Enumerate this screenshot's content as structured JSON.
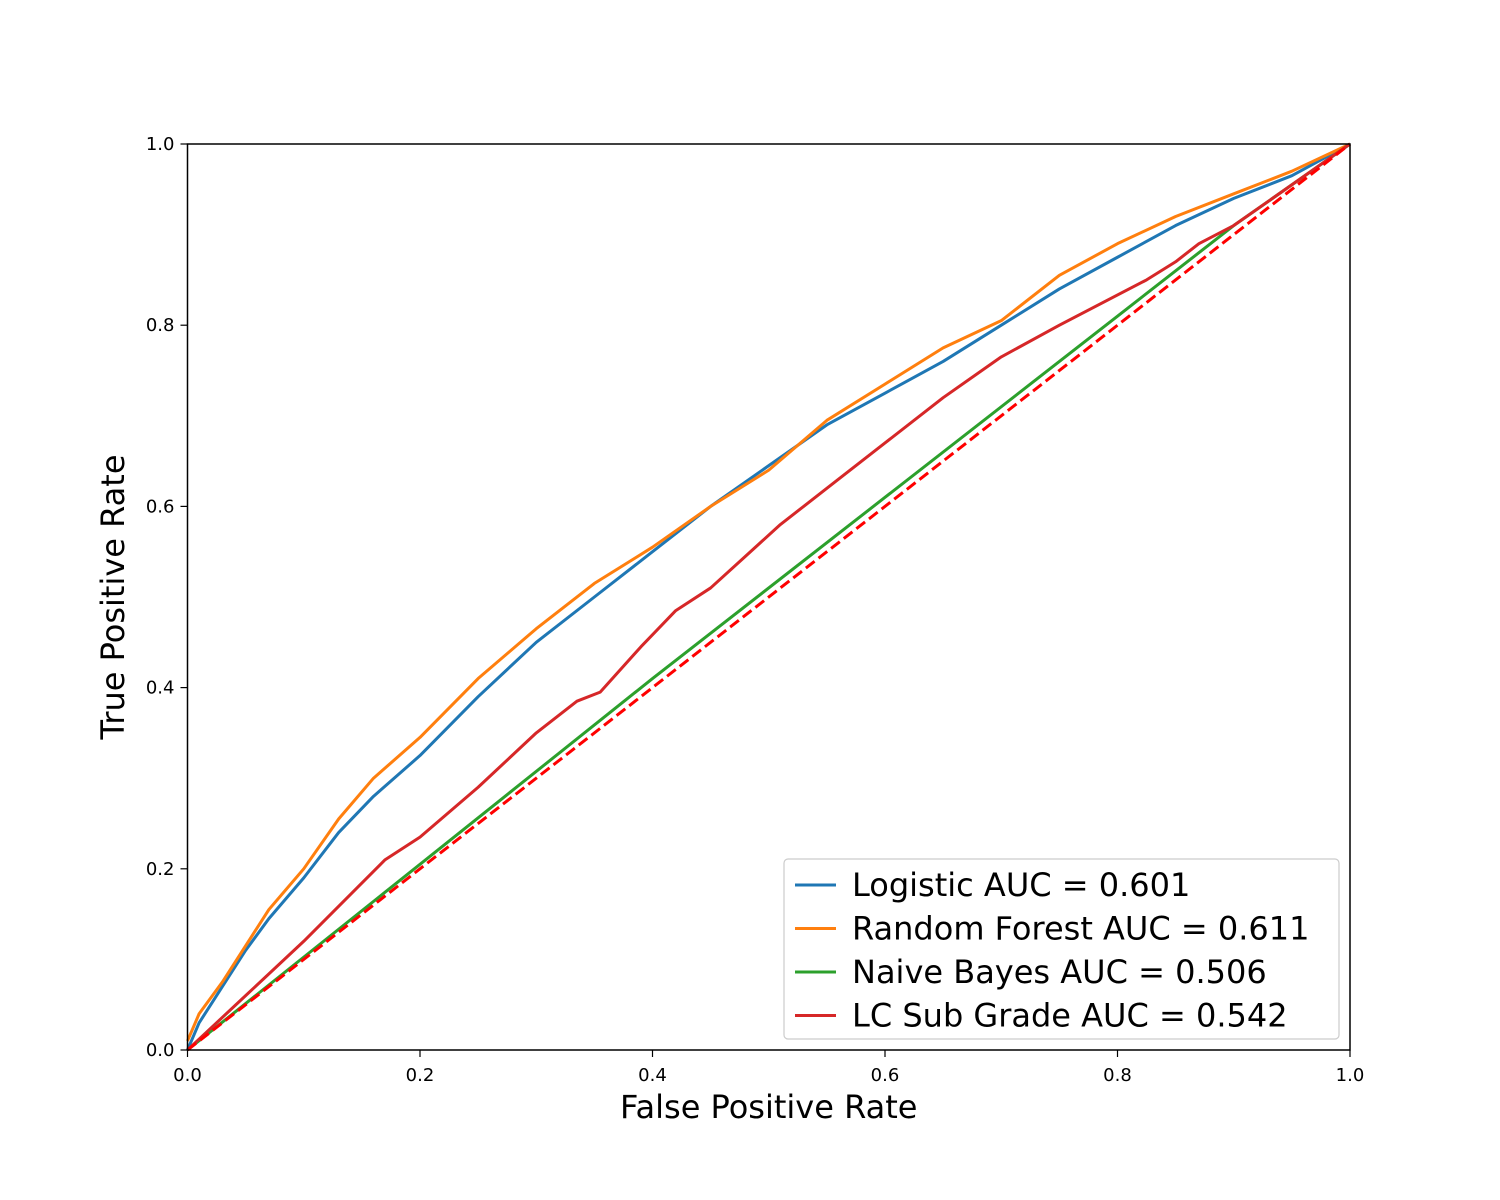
{
  "chart_data": {
    "type": "line",
    "title": "",
    "xlabel": "False Positive Rate",
    "ylabel": "True Positive Rate",
    "xlim": [
      0.0,
      1.0
    ],
    "ylim": [
      0.0,
      1.0
    ],
    "x_ticks": [
      0.0,
      0.2,
      0.4,
      0.6,
      0.8,
      1.0
    ],
    "y_ticks": [
      0.0,
      0.2,
      0.4,
      0.6,
      0.8,
      1.0
    ],
    "x_tick_labels": [
      "0.0",
      "0.2",
      "0.4",
      "0.6",
      "0.8",
      "1.0"
    ],
    "y_tick_labels": [
      "0.0",
      "0.2",
      "0.4",
      "0.6",
      "0.8",
      "1.0"
    ],
    "grid": false,
    "legend_position": "lower-right",
    "series": [
      {
        "name": "Logistic AUC = 0.601",
        "color": "#1f77b4",
        "x": [
          0,
          0.01,
          0.03,
          0.05,
          0.07,
          0.1,
          0.13,
          0.16,
          0.2,
          0.25,
          0.3,
          0.35,
          0.4,
          0.45,
          0.5,
          0.55,
          0.6,
          0.65,
          0.7,
          0.75,
          0.8,
          0.85,
          0.9,
          0.95,
          1.0
        ],
        "y": [
          0,
          0.03,
          0.07,
          0.11,
          0.145,
          0.19,
          0.24,
          0.28,
          0.325,
          0.39,
          0.45,
          0.5,
          0.55,
          0.6,
          0.645,
          0.69,
          0.725,
          0.76,
          0.8,
          0.84,
          0.875,
          0.91,
          0.94,
          0.965,
          1.0
        ]
      },
      {
        "name": "Random Forest AUC = 0.611",
        "color": "#ff7f0e",
        "x": [
          0,
          0.01,
          0.03,
          0.05,
          0.07,
          0.1,
          0.13,
          0.16,
          0.2,
          0.25,
          0.3,
          0.35,
          0.4,
          0.45,
          0.5,
          0.55,
          0.6,
          0.65,
          0.7,
          0.75,
          0.8,
          0.85,
          0.9,
          0.95,
          1.0
        ],
        "y": [
          0.01,
          0.04,
          0.075,
          0.115,
          0.155,
          0.2,
          0.255,
          0.3,
          0.345,
          0.41,
          0.465,
          0.515,
          0.555,
          0.6,
          0.64,
          0.695,
          0.735,
          0.775,
          0.805,
          0.855,
          0.89,
          0.92,
          0.945,
          0.97,
          1.0
        ]
      },
      {
        "name": "Naive Bayes AUC = 0.506",
        "color": "#2ca02c",
        "x": [
          0,
          0.2,
          0.4,
          0.6,
          0.8,
          0.9,
          1.0
        ],
        "y": [
          0,
          0.205,
          0.41,
          0.61,
          0.81,
          0.91,
          1.0
        ]
      },
      {
        "name": "LC Sub Grade AUC = 0.542",
        "color": "#d62728",
        "x": [
          0,
          0.05,
          0.1,
          0.17,
          0.2,
          0.25,
          0.3,
          0.335,
          0.355,
          0.39,
          0.42,
          0.45,
          0.48,
          0.51,
          0.53,
          0.56,
          0.6,
          0.65,
          0.7,
          0.75,
          0.825,
          0.85,
          0.87,
          0.9,
          0.95,
          1.0
        ],
        "y": [
          0,
          0.06,
          0.12,
          0.21,
          0.235,
          0.29,
          0.35,
          0.385,
          0.395,
          0.445,
          0.485,
          0.51,
          0.545,
          0.58,
          0.6,
          0.63,
          0.67,
          0.72,
          0.765,
          0.8,
          0.85,
          0.87,
          0.89,
          0.91,
          0.955,
          1.0
        ]
      }
    ],
    "reference_line": {
      "color": "#ff0000",
      "style": "dashed",
      "x": [
        0,
        1.0
      ],
      "y": [
        0,
        1.0
      ]
    }
  }
}
